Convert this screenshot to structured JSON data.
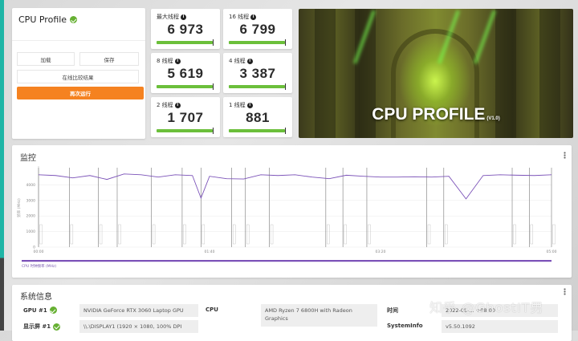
{
  "left_panel": {
    "title": "CPU Profile",
    "status_icon": "check-circle-icon",
    "buttons": {
      "load": "加载",
      "save": "保存",
      "compare_online": "在线比较结果",
      "run_again": "再次运行"
    },
    "accent_color": "#f58220"
  },
  "scores": [
    {
      "label": "最大线程",
      "value": "6 973"
    },
    {
      "label": "16 线程",
      "value": "6 799"
    },
    {
      "label": "8 线程",
      "value": "5 619"
    },
    {
      "label": "4 线程",
      "value": "3 387"
    },
    {
      "label": "2 线程",
      "value": "1 707"
    },
    {
      "label": "1 线程",
      "value": "881"
    }
  ],
  "hero": {
    "title": "CPU PROFILE",
    "version": "(V1.0)"
  },
  "monitor": {
    "title": "监控",
    "legend": "CPU 时钟频率 (MHz)",
    "line_color": "#7b52b8"
  },
  "chart_data": {
    "type": "line",
    "title": "监控",
    "ylabel": "频率 (MHz)",
    "ylim": [
      0,
      5000
    ],
    "yticks": [
      "0",
      "1000",
      "2000",
      "3000",
      "4000"
    ],
    "xticks": [
      "00:00",
      "01:40",
      "03:20",
      "05:00"
    ],
    "grid": true,
    "series": [
      {
        "name": "CPU 时钟频率 (MHz)",
        "x_seconds": [
          0,
          10,
          20,
          30,
          40,
          50,
          60,
          70,
          80,
          90,
          95,
          100,
          110,
          120,
          130,
          140,
          150,
          160,
          170,
          180,
          190,
          200,
          210,
          220,
          230,
          240,
          250,
          260,
          270,
          280,
          290,
          300
        ],
        "values": [
          4650,
          4600,
          4450,
          4600,
          4350,
          4700,
          4650,
          4500,
          4650,
          4600,
          3150,
          4550,
          4400,
          4380,
          4650,
          4600,
          4650,
          4500,
          4400,
          4620,
          4550,
          4500,
          4500,
          4520,
          4500,
          4550,
          3100,
          4600,
          4650,
          4620,
          4600,
          4650
        ]
      }
    ],
    "markers_x_seconds": [
      0,
      18,
      35,
      46,
      66,
      84,
      95,
      113,
      121,
      135,
      168,
      178,
      192,
      227,
      237,
      277,
      287,
      300
    ]
  },
  "sysinfo": {
    "title": "系统信息",
    "rows": [
      {
        "key": "GPU #1",
        "value": "NVIDIA GeForce RTX 3060 Laptop GPU",
        "ok": true
      },
      {
        "key": "显示屏 #1",
        "value": "\\\\.\\DISPLAY1 (1920 × 1080, 100% DPI",
        "ok": true
      },
      {
        "key": "CPU",
        "value": "AMD Ryzen 7 6800H with Radeon Graphics"
      },
      {
        "key": "时间",
        "value": "2022-05-... +08:00"
      },
      {
        "key": "SystemInfo",
        "value": "v5.50.1092"
      }
    ]
  },
  "watermark": "知乎 @GhostIT男"
}
